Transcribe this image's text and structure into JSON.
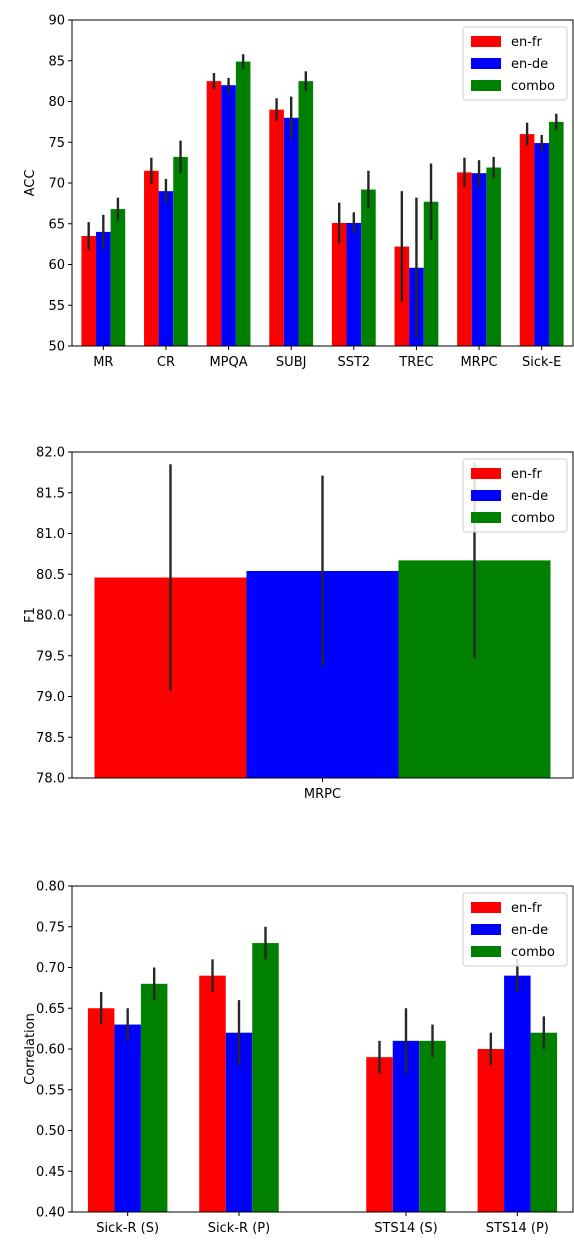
{
  "colors": {
    "en-fr": "#ff0000",
    "en-de": "#0000ff",
    "combo": "#008000",
    "error_bar": "#262626",
    "axis": "#000000"
  },
  "chart_data": [
    {
      "type": "bar",
      "ylabel": "ACC",
      "ylim": [
        50,
        90
      ],
      "yticks": [
        50,
        55,
        60,
        65,
        70,
        75,
        80,
        85,
        90
      ],
      "ytick_labels": [
        "50",
        "55",
        "60",
        "65",
        "70",
        "75",
        "80",
        "85",
        "90"
      ],
      "categories": [
        "MR",
        "CR",
        "MPQA",
        "SUBJ",
        "SST2",
        "TREC",
        "MRPC",
        "Sick-E"
      ],
      "legend_position": "top-right",
      "grid": false,
      "series": [
        {
          "name": "en-fr",
          "values": [
            63.5,
            71.5,
            82.5,
            79.0,
            65.1,
            62.2,
            71.3,
            76.0
          ],
          "errors": [
            1.7,
            1.6,
            1.0,
            1.4,
            2.5,
            6.8,
            1.8,
            1.4
          ]
        },
        {
          "name": "en-de",
          "values": [
            64.0,
            69.0,
            82.0,
            78.0,
            65.1,
            59.6,
            71.2,
            74.9
          ],
          "errors": [
            2.1,
            1.5,
            0.9,
            2.6,
            1.3,
            8.6,
            1.6,
            1.0
          ]
        },
        {
          "name": "combo",
          "values": [
            66.8,
            73.2,
            84.9,
            82.5,
            69.2,
            67.7,
            71.9,
            77.5
          ],
          "errors": [
            1.4,
            2.0,
            0.9,
            1.2,
            2.3,
            4.7,
            1.3,
            1.0
          ]
        }
      ]
    },
    {
      "type": "bar",
      "ylabel": "F1",
      "ylim": [
        78.0,
        82.0
      ],
      "yticks": [
        78.0,
        78.5,
        79.0,
        79.5,
        80.0,
        80.5,
        81.0,
        81.5,
        82.0
      ],
      "ytick_labels": [
        "78.0",
        "78.5",
        "79.0",
        "79.5",
        "80.0",
        "80.5",
        "81.0",
        "81.5",
        "82.0"
      ],
      "categories": [
        "MRPC"
      ],
      "legend_position": "top-right",
      "grid": false,
      "series": [
        {
          "name": "en-fr",
          "values": [
            80.46
          ],
          "errors": [
            1.39
          ]
        },
        {
          "name": "en-de",
          "values": [
            80.54
          ],
          "errors": [
            1.17
          ]
        },
        {
          "name": "combo",
          "values": [
            80.67
          ],
          "errors": [
            1.2
          ]
        }
      ]
    },
    {
      "type": "bar",
      "ylabel": "Correlation",
      "ylim": [
        0.4,
        0.8
      ],
      "yticks": [
        0.4,
        0.45,
        0.5,
        0.55,
        0.6,
        0.65,
        0.7,
        0.75,
        0.8
      ],
      "ytick_labels": [
        "0.40",
        "0.45",
        "0.50",
        "0.55",
        "0.60",
        "0.65",
        "0.70",
        "0.75",
        "0.80"
      ],
      "categories": [
        "Sick-R (S)",
        "Sick-R (P)",
        "STS14 (S)",
        "STS14 (P)"
      ],
      "x": [
        0,
        1,
        2.5,
        3.5
      ],
      "legend_position": "top-right",
      "grid": false,
      "series": [
        {
          "name": "en-fr",
          "values": [
            0.65,
            0.69,
            0.59,
            0.6
          ],
          "errors": [
            0.02,
            0.02,
            0.02,
            0.02
          ]
        },
        {
          "name": "en-de",
          "values": [
            0.63,
            0.62,
            0.61,
            0.69
          ],
          "errors": [
            0.02,
            0.04,
            0.04,
            0.02
          ]
        },
        {
          "name": "combo",
          "values": [
            0.68,
            0.73,
            0.61,
            0.62
          ],
          "errors": [
            0.02,
            0.02,
            0.02,
            0.02
          ]
        }
      ]
    }
  ]
}
